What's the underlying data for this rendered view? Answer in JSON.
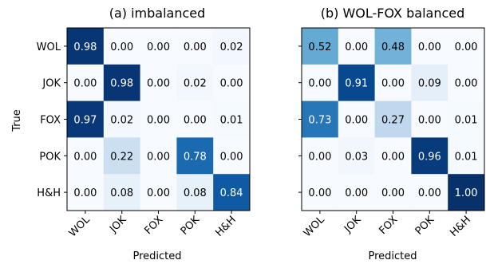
{
  "chart_data": [
    {
      "type": "heatmap",
      "title": "(a) imbalanced",
      "xlabel": "Predicted",
      "ylabel": "True",
      "x_categories": [
        "WOL",
        "JOK",
        "FOX",
        "POK",
        "H&H"
      ],
      "y_categories": [
        "WOL",
        "JOK",
        "FOX",
        "POK",
        "H&H"
      ],
      "values": [
        [
          0.98,
          0.0,
          0.0,
          0.0,
          0.02
        ],
        [
          0.0,
          0.98,
          0.0,
          0.02,
          0.0
        ],
        [
          0.97,
          0.02,
          0.0,
          0.0,
          0.01
        ],
        [
          0.0,
          0.22,
          0.0,
          0.78,
          0.0
        ],
        [
          0.0,
          0.08,
          0.0,
          0.08,
          0.84
        ]
      ],
      "colormap": "Blues",
      "value_range": [
        0,
        1
      ]
    },
    {
      "type": "heatmap",
      "title": "(b) WOL-FOX balanced",
      "xlabel": "Predicted",
      "ylabel": "",
      "x_categories": [
        "WOL",
        "JOK",
        "FOX",
        "POK",
        "H&H"
      ],
      "y_categories": [
        "",
        "",
        "",
        "",
        ""
      ],
      "values": [
        [
          0.52,
          0.0,
          0.48,
          0.0,
          0.0
        ],
        [
          0.0,
          0.91,
          0.0,
          0.09,
          0.0
        ],
        [
          0.73,
          0.0,
          0.27,
          0.0,
          0.01
        ],
        [
          0.0,
          0.03,
          0.0,
          0.96,
          0.01
        ],
        [
          0.0,
          0.0,
          0.0,
          0.0,
          1.0
        ]
      ],
      "colormap": "Blues",
      "value_range": [
        0,
        1
      ]
    }
  ]
}
